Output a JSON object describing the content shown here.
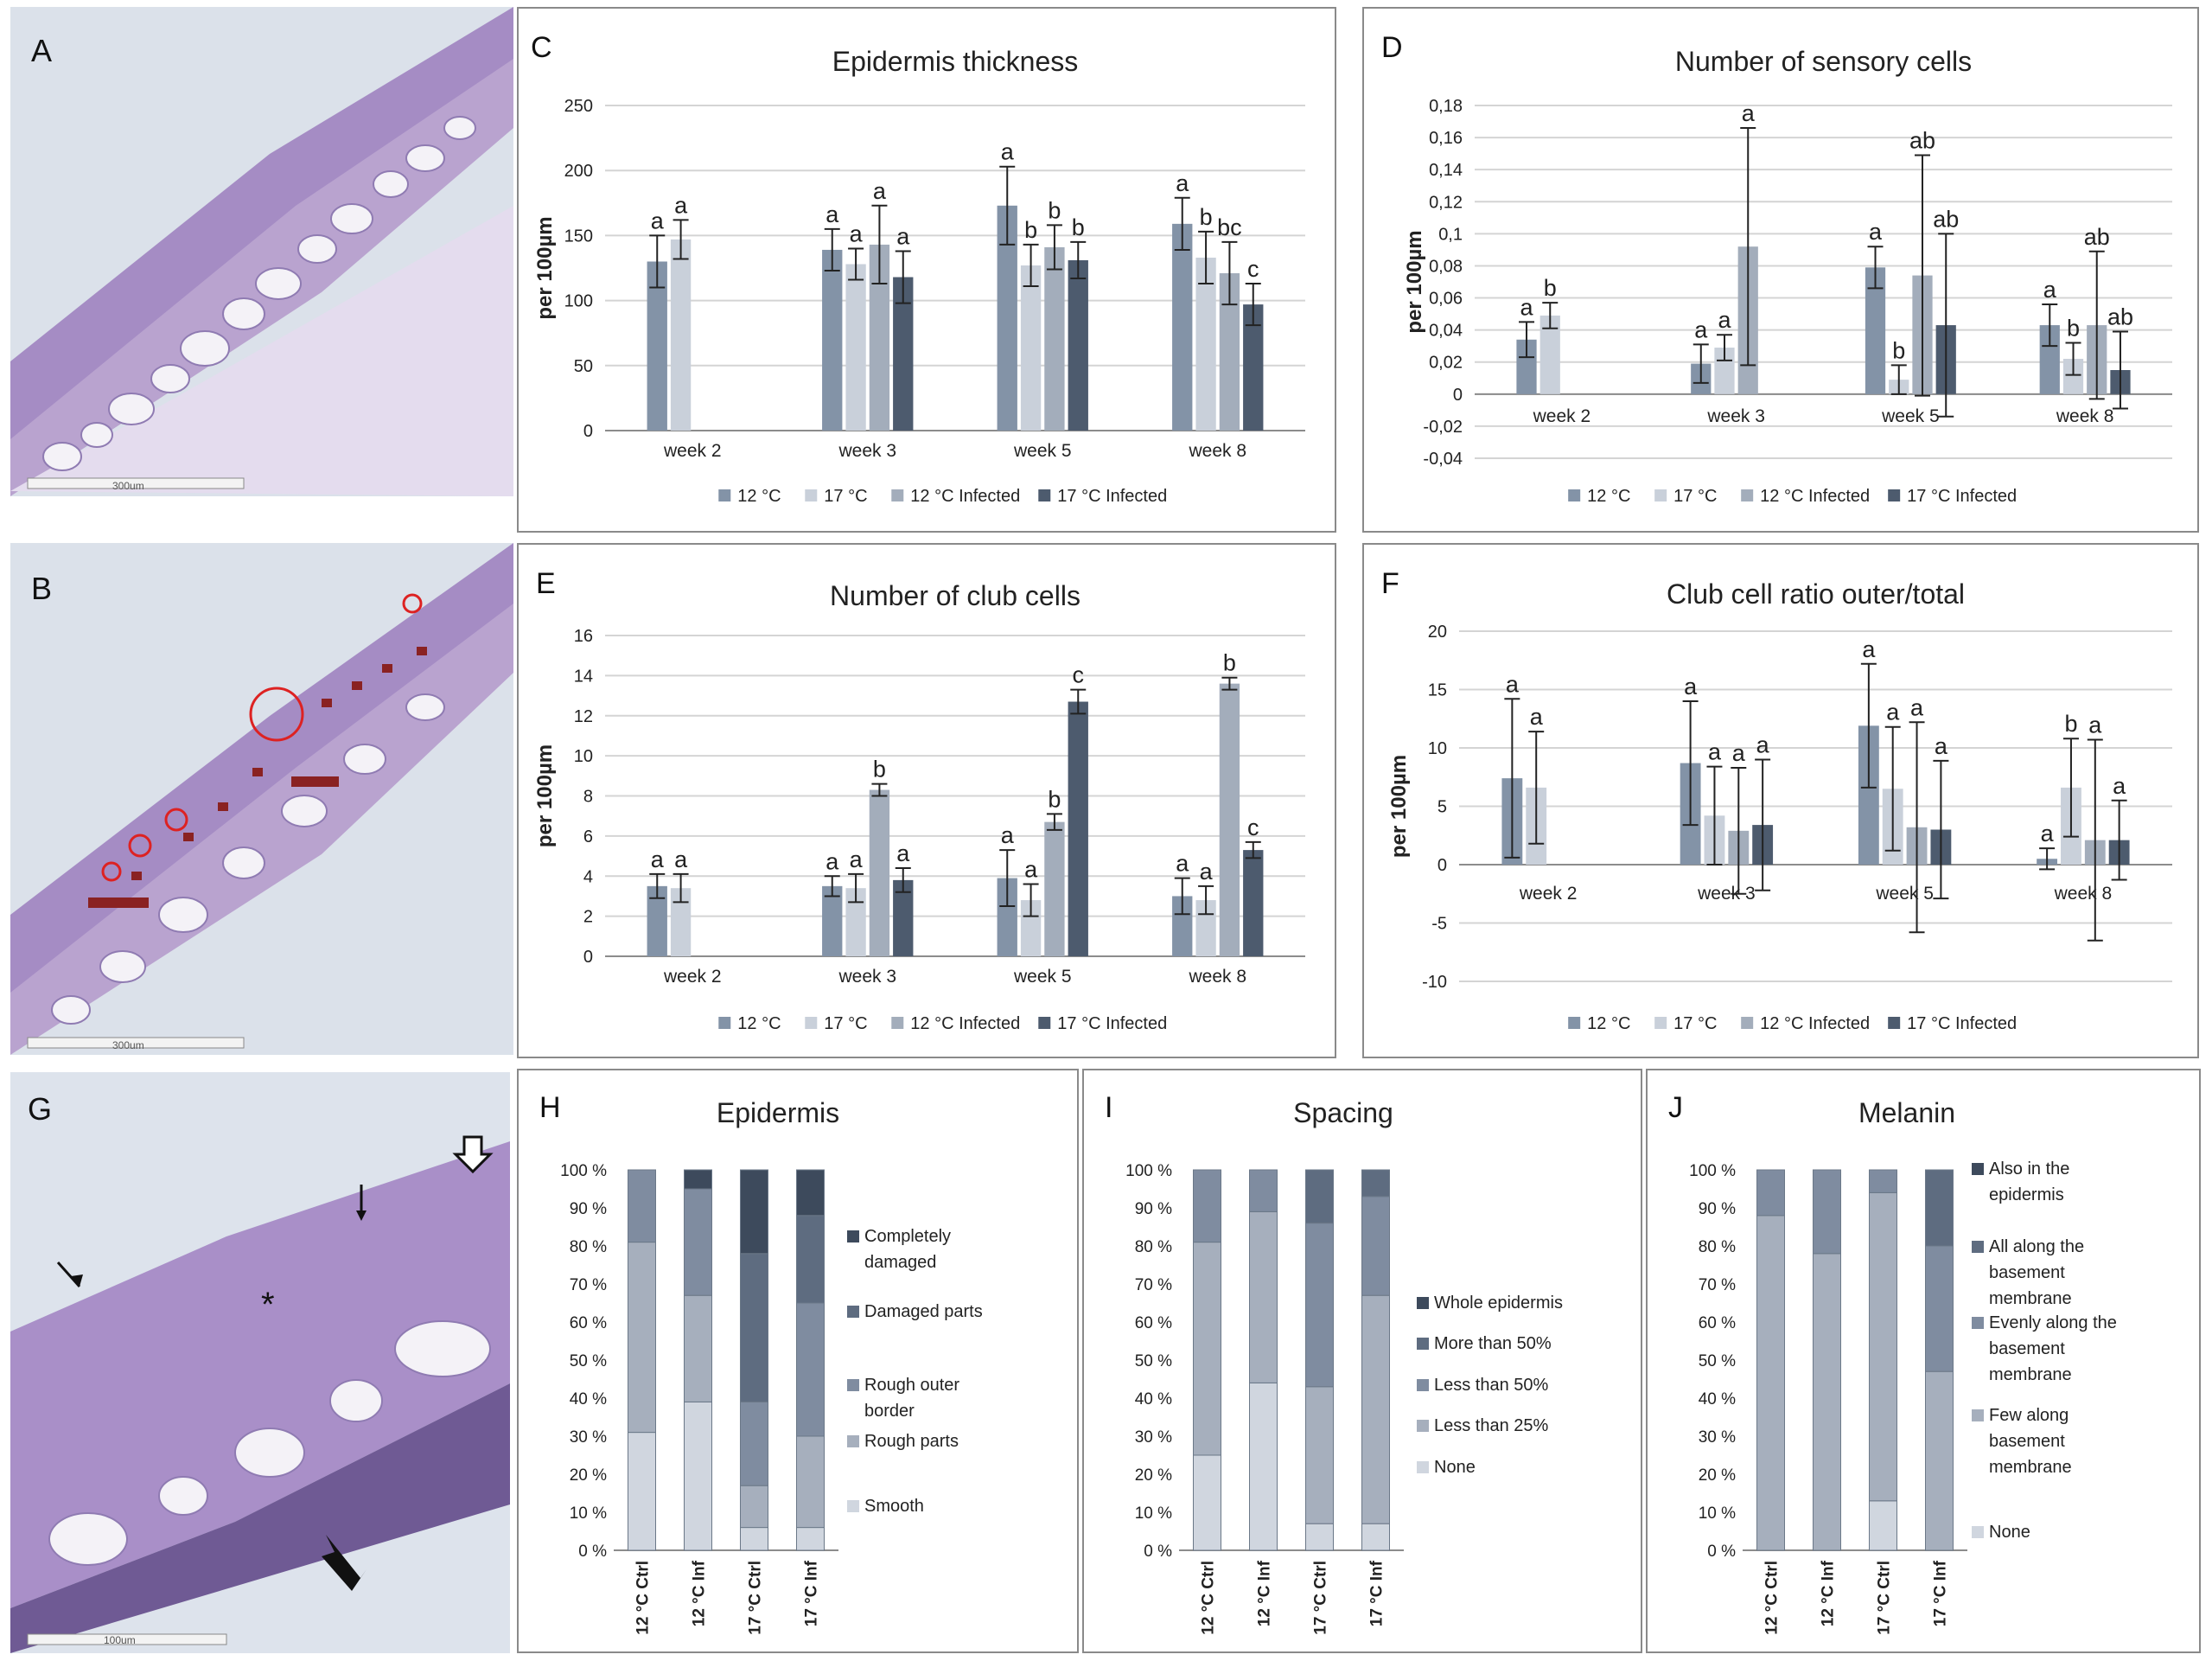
{
  "colors": {
    "c12": "#8393a7",
    "c17": "#c9d0da",
    "c12i": "#a3adbb",
    "c17i": "#4d5b6e",
    "grid": "#d4d4d4",
    "axis": "#8c8c8c",
    "text": "#222222"
  },
  "photos": [
    {
      "letter": "A",
      "scale": "300um"
    },
    {
      "letter": "B",
      "scale": "300um"
    },
    {
      "letter": "G",
      "scale": "100um"
    }
  ],
  "panels": {
    "C": "C",
    "D": "D",
    "E": "E",
    "F": "F",
    "H": "H",
    "I": "I",
    "J": "J"
  },
  "chart_data": [
    {
      "id": "C",
      "type": "bar",
      "title": "Epidermis thickness",
      "ylabel": "per 100µm",
      "ylim": [
        0,
        250
      ],
      "yticks": [
        "0",
        "50",
        "100",
        "150",
        "200",
        "250"
      ],
      "categories": [
        "week 2",
        "week 3",
        "week 5",
        "week 8"
      ],
      "series": [
        {
          "name": "12 °C",
          "values": [
            130,
            139,
            173,
            159
          ],
          "errors": [
            20,
            16,
            30,
            20
          ],
          "letters": [
            "a",
            "a",
            "a",
            "a"
          ]
        },
        {
          "name": "17 °C",
          "values": [
            147,
            128,
            127,
            133
          ],
          "errors": [
            15,
            12,
            16,
            20
          ],
          "letters": [
            "a",
            "a",
            "b",
            "b"
          ]
        },
        {
          "name": "12 °C Infected",
          "values": [
            null,
            143,
            141,
            121
          ],
          "errors": [
            null,
            30,
            17,
            24
          ],
          "letters": [
            "",
            "a",
            "b",
            "bc"
          ]
        },
        {
          "name": "17 °C Infected",
          "values": [
            null,
            118,
            131,
            97
          ],
          "errors": [
            null,
            20,
            14,
            16
          ],
          "letters": [
            "",
            "a",
            "b",
            "c"
          ]
        }
      ]
    },
    {
      "id": "D",
      "type": "bar",
      "title": "Number of sensory cells",
      "ylabel": "per 100µm",
      "ylim": [
        -0.04,
        0.18
      ],
      "yticks": [
        "-0,04",
        "-0,02",
        "0",
        "0,02",
        "0,04",
        "0,06",
        "0,08",
        "0,1",
        "0,12",
        "0,14",
        "0,16",
        "0,18"
      ],
      "categories": [
        "week 2",
        "week 3",
        "week 5",
        "week 8"
      ],
      "series": [
        {
          "name": "12 °C",
          "values": [
            0.034,
            0.019,
            0.079,
            0.043
          ],
          "errors": [
            0.011,
            0.012,
            0.013,
            0.013
          ],
          "letters": [
            "a",
            "a",
            "a",
            "a"
          ]
        },
        {
          "name": "17 °C",
          "values": [
            0.049,
            0.029,
            0.009,
            0.022
          ],
          "errors": [
            0.008,
            0.008,
            0.009,
            0.01
          ],
          "letters": [
            "b",
            "a",
            "b",
            "b"
          ]
        },
        {
          "name": "12 °C Infected",
          "values": [
            null,
            0.092,
            0.074,
            0.043
          ],
          "errors": [
            null,
            0.074,
            0.075,
            0.046
          ],
          "letters": [
            "",
            "a",
            "ab",
            "ab"
          ]
        },
        {
          "name": "17 °C Infected",
          "values": [
            null,
            null,
            0.043,
            0.015
          ],
          "errors": [
            null,
            null,
            0.057,
            0.024
          ],
          "letters": [
            "",
            "",
            "ab",
            "ab"
          ]
        }
      ]
    },
    {
      "id": "E",
      "type": "bar",
      "title": "Number of club cells",
      "ylabel": "per 100µm",
      "ylim": [
        0,
        16
      ],
      "yticks": [
        "0",
        "2",
        "4",
        "6",
        "8",
        "10",
        "12",
        "14",
        "16"
      ],
      "categories": [
        "week 2",
        "week 3",
        "week 5",
        "week 8"
      ],
      "series": [
        {
          "name": "12 °C",
          "values": [
            3.5,
            3.5,
            3.9,
            3.0
          ],
          "errors": [
            0.6,
            0.5,
            1.4,
            0.9
          ],
          "letters": [
            "a",
            "a",
            "a",
            "a"
          ]
        },
        {
          "name": "17 °C",
          "values": [
            3.4,
            3.4,
            2.8,
            2.8
          ],
          "errors": [
            0.7,
            0.7,
            0.8,
            0.7
          ],
          "letters": [
            "a",
            "a",
            "a",
            "a"
          ]
        },
        {
          "name": "12 °C Infected",
          "values": [
            null,
            8.3,
            6.7,
            13.6
          ],
          "errors": [
            null,
            0.3,
            0.4,
            0.3
          ],
          "letters": [
            "",
            "b",
            "b",
            "b"
          ]
        },
        {
          "name": "17 °C Infected",
          "values": [
            null,
            3.8,
            12.7,
            5.3
          ],
          "errors": [
            null,
            0.6,
            0.6,
            0.4
          ],
          "letters": [
            "",
            "a",
            "c",
            "c"
          ]
        }
      ]
    },
    {
      "id": "F",
      "type": "bar",
      "title": "Club cell ratio outer/total",
      "ylabel": "per 100µm",
      "ylim": [
        -10,
        20
      ],
      "yticks": [
        "-10",
        "-5",
        "0",
        "5",
        "10",
        "15",
        "20"
      ],
      "categories": [
        "week 2",
        "week 3",
        "week 5",
        "week 8"
      ],
      "series": [
        {
          "name": "12 °C",
          "values": [
            7.4,
            8.7,
            11.9,
            0.5
          ],
          "errors": [
            6.8,
            5.3,
            5.3,
            0.9
          ],
          "letters": [
            "a",
            "a",
            "a",
            "a"
          ]
        },
        {
          "name": "17 °C",
          "values": [
            6.6,
            4.2,
            6.5,
            6.6
          ],
          "errors": [
            4.8,
            4.2,
            5.3,
            4.2
          ],
          "letters": [
            "a",
            "a",
            "a",
            "b"
          ]
        },
        {
          "name": "12 °C Infected",
          "values": [
            null,
            2.9,
            3.2,
            2.1
          ],
          "errors": [
            null,
            5.4,
            9.0,
            8.6
          ],
          "letters": [
            "",
            "a",
            "a",
            "a"
          ]
        },
        {
          "name": "17 °C Infected",
          "values": [
            null,
            3.4,
            3.0,
            2.1
          ],
          "errors": [
            null,
            5.6,
            5.9,
            3.4
          ],
          "letters": [
            "",
            "a",
            "a",
            "a"
          ]
        }
      ]
    },
    {
      "id": "H",
      "type": "bar",
      "stacked": true,
      "title": "Epidermis",
      "yticks": [
        "0 %",
        "10 %",
        "20 %",
        "30 %",
        "40 %",
        "50 %",
        "60 %",
        "70 %",
        "80 %",
        "90 %",
        "100 %"
      ],
      "categories": [
        "12 °C Ctrl",
        "12 °C Inf",
        "17 °C Ctrl",
        "17 °C Inf"
      ],
      "series": [
        {
          "name": "Smooth",
          "values": [
            31,
            39,
            6,
            6
          ]
        },
        {
          "name": "Rough parts",
          "values": [
            50,
            28,
            11,
            24
          ]
        },
        {
          "name": "Rough outer border",
          "values": [
            19,
            28,
            22,
            35
          ]
        },
        {
          "name": "Damaged parts",
          "values": [
            0,
            0,
            39,
            23
          ]
        },
        {
          "name": "Completely damaged",
          "values": [
            0,
            5,
            22,
            12
          ]
        }
      ]
    },
    {
      "id": "I",
      "type": "bar",
      "stacked": true,
      "title": "Spacing",
      "yticks": [
        "0 %",
        "10 %",
        "20 %",
        "30 %",
        "40 %",
        "50 %",
        "60 %",
        "70 %",
        "80 %",
        "90 %",
        "100 %"
      ],
      "categories": [
        "12 °C Ctrl",
        "12 °C Inf",
        "17 °C Ctrl",
        "17 °C Inf"
      ],
      "series": [
        {
          "name": "None",
          "values": [
            25,
            44,
            7,
            7
          ]
        },
        {
          "name": "Less than 25%",
          "values": [
            56,
            45,
            36,
            60
          ]
        },
        {
          "name": "Less than 50%",
          "values": [
            19,
            11,
            43,
            26
          ]
        },
        {
          "name": "More than 50%",
          "values": [
            0,
            0,
            14,
            7
          ]
        },
        {
          "name": "Whole epidermis",
          "values": [
            0,
            0,
            0,
            0
          ]
        }
      ]
    },
    {
      "id": "J",
      "type": "bar",
      "stacked": true,
      "title": "Melanin",
      "yticks": [
        "0 %",
        "10 %",
        "20 %",
        "30 %",
        "40 %",
        "50 %",
        "60 %",
        "70 %",
        "80 %",
        "90 %",
        "100 %"
      ],
      "categories": [
        "12 °C Ctrl",
        "12 °C Inf",
        "17 °C Ctrl",
        "17 °C Inf"
      ],
      "series": [
        {
          "name": "None",
          "values": [
            0,
            0,
            13,
            0
          ]
        },
        {
          "name": "Few along basement membrane",
          "values": [
            88,
            78,
            81,
            47
          ]
        },
        {
          "name": "Evenly along the basement membrane",
          "values": [
            12,
            22,
            6,
            33
          ]
        },
        {
          "name": "All along the basement membrane",
          "values": [
            0,
            0,
            0,
            20
          ]
        },
        {
          "name": "Also in the epidermis",
          "values": [
            0,
            0,
            0,
            0
          ]
        }
      ]
    }
  ]
}
